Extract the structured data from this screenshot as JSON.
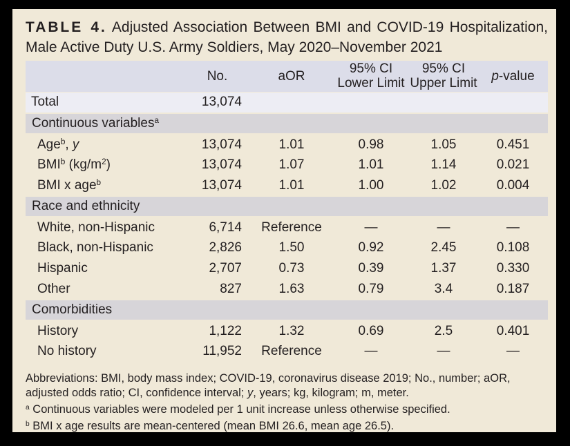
{
  "title": {
    "label": "TABLE 4.",
    "line1": "Adjusted Association Between BMI and COVID-19 Hospitalization,",
    "line2": "Male Active Duty U.S. Army Soldiers, May 2020–November 2021"
  },
  "colors": {
    "page_background": "#f0e9d8",
    "outer_border": "#000000",
    "header_row": "#dcdde9",
    "total_row": "#ededf4",
    "section_row": "#d7d5d9",
    "text": "#231f20"
  },
  "table": {
    "header": {
      "no": "No.",
      "aor": "aOR",
      "lower_line1": "95% CI",
      "lower_line2": "Lower Limit",
      "upper_line1": "95% CI",
      "upper_line2": "Upper Limit",
      "pvalue": [
        {
          "t": "p",
          "i": true
        },
        {
          "t": "-value"
        }
      ]
    },
    "rows": [
      {
        "type": "total",
        "label": [
          {
            "t": "Total"
          }
        ],
        "no": "13,074",
        "aor": "",
        "lower": "",
        "upper": "",
        "p": ""
      },
      {
        "type": "section",
        "label": [
          {
            "t": "Continuous variables"
          },
          {
            "t": "a",
            "sup": true
          }
        ]
      },
      {
        "type": "data",
        "label": [
          {
            "t": "Age"
          },
          {
            "t": "b",
            "sup": true
          },
          {
            "t": ", "
          },
          {
            "t": "y",
            "i": true
          }
        ],
        "no": "13,074",
        "aor": "1.01",
        "lower": "0.98",
        "upper": "1.05",
        "p": "0.451"
      },
      {
        "type": "data",
        "label": [
          {
            "t": "BMI"
          },
          {
            "t": "b",
            "sup": true
          },
          {
            "t": " (kg/m"
          },
          {
            "t": "2",
            "sup": true
          },
          {
            "t": ")"
          }
        ],
        "no": "13,074",
        "aor": "1.07",
        "lower": "1.01",
        "upper": "1.14",
        "p": "0.021"
      },
      {
        "type": "data",
        "label": [
          {
            "t": "BMI x age"
          },
          {
            "t": "b",
            "sup": true
          }
        ],
        "no": "13,074",
        "aor": "1.01",
        "lower": "1.00",
        "upper": "1.02",
        "p": "0.004"
      },
      {
        "type": "section",
        "label": [
          {
            "t": "Race and ethnicity"
          }
        ]
      },
      {
        "type": "data",
        "label": [
          {
            "t": "White, non-Hispanic"
          }
        ],
        "no": "6,714",
        "aor": "Reference",
        "lower": "—",
        "upper": "—",
        "p": "—"
      },
      {
        "type": "data",
        "label": [
          {
            "t": "Black, non-Hispanic"
          }
        ],
        "no": "2,826",
        "aor": "1.50",
        "lower": "0.92",
        "upper": "2.45",
        "p": "0.108"
      },
      {
        "type": "data",
        "label": [
          {
            "t": "Hispanic"
          }
        ],
        "no": "2,707",
        "aor": "0.73",
        "lower": "0.39",
        "upper": "1.37",
        "p": "0.330"
      },
      {
        "type": "data",
        "label": [
          {
            "t": "Other"
          }
        ],
        "no": "827",
        "aor": "1.63",
        "lower": "0.79",
        "upper": "3.4",
        "p": "0.187"
      },
      {
        "type": "section",
        "label": [
          {
            "t": "Comorbidities"
          }
        ]
      },
      {
        "type": "data",
        "label": [
          {
            "t": "History"
          }
        ],
        "no": "1,122",
        "aor": "1.32",
        "lower": "0.69",
        "upper": "2.5",
        "p": "0.401"
      },
      {
        "type": "data",
        "label": [
          {
            "t": "No history"
          }
        ],
        "no": "11,952",
        "aor": "Reference",
        "lower": "—",
        "upper": "—",
        "p": "—"
      }
    ]
  },
  "footnotes": [
    [
      {
        "t": "Abbreviations: BMI, body mass index; COVID-19, coronavirus disease 2019; No., number; aOR, adjusted odds ratio; CI, confidence interval; "
      },
      {
        "t": "y",
        "i": true
      },
      {
        "t": ", years; kg, kilogram; m, meter."
      }
    ],
    [
      {
        "t": "a",
        "sup": true
      },
      {
        "t": " Continuous variables were modeled per 1 unit increase unless otherwise specified."
      }
    ],
    [
      {
        "t": "b",
        "sup": true
      },
      {
        "t": " BMI x age results are mean-centered (mean BMI 26.6, mean age 26.5)."
      }
    ]
  ],
  "chart_data": {
    "type": "table",
    "title": "TABLE 4. Adjusted Association Between BMI and COVID-19 Hospitalization, Male Active Duty U.S. Army Soldiers, May 2020–November 2021",
    "columns": [
      "",
      "No.",
      "aOR",
      "95% CI Lower Limit",
      "95% CI Upper Limit",
      "p-value"
    ],
    "rows": [
      [
        "Total",
        "13,074",
        "",
        "",
        "",
        ""
      ],
      [
        "Continuous variables (a)",
        "",
        "",
        "",
        "",
        ""
      ],
      [
        "Age (b), y",
        "13,074",
        "1.01",
        "0.98",
        "1.05",
        "0.451"
      ],
      [
        "BMI (b) (kg/m2)",
        "13,074",
        "1.07",
        "1.01",
        "1.14",
        "0.021"
      ],
      [
        "BMI x age (b)",
        "13,074",
        "1.01",
        "1.00",
        "1.02",
        "0.004"
      ],
      [
        "Race and ethnicity",
        "",
        "",
        "",
        "",
        ""
      ],
      [
        "White, non-Hispanic",
        "6,714",
        "Reference",
        "—",
        "—",
        "—"
      ],
      [
        "Black, non-Hispanic",
        "2,826",
        "1.50",
        "0.92",
        "2.45",
        "0.108"
      ],
      [
        "Hispanic",
        "2,707",
        "0.73",
        "0.39",
        "1.37",
        "0.330"
      ],
      [
        "Other",
        "827",
        "1.63",
        "0.79",
        "3.4",
        "0.187"
      ],
      [
        "Comorbidities",
        "",
        "",
        "",
        "",
        ""
      ],
      [
        "History",
        "1,122",
        "1.32",
        "0.69",
        "2.5",
        "0.401"
      ],
      [
        "No history",
        "11,952",
        "Reference",
        "—",
        "—",
        "—"
      ]
    ]
  }
}
